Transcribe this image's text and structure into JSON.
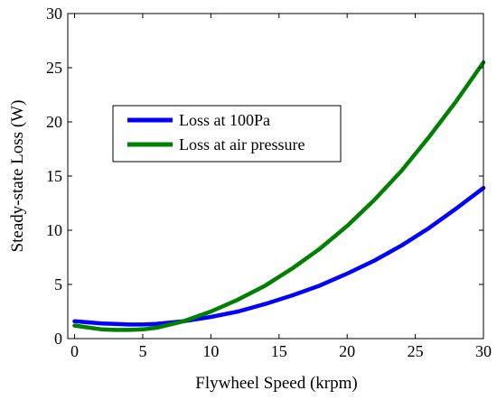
{
  "chart_data": {
    "type": "line",
    "title": "",
    "xlabel": "Flywheel Speed (krpm)",
    "ylabel": "Steady-state Loss (W)",
    "xlim": [
      -0.5,
      30
    ],
    "ylim": [
      0,
      30
    ],
    "xticks": [
      0,
      5,
      10,
      15,
      20,
      25,
      30
    ],
    "yticks": [
      0,
      5,
      10,
      15,
      20,
      25,
      30
    ],
    "grid": false,
    "legend_position": "upper-left",
    "series": [
      {
        "name": "Loss at 100Pa",
        "color": "#0000ff",
        "x": [
          0,
          2,
          4,
          5,
          6,
          8,
          10,
          12,
          14,
          16,
          18,
          20,
          22,
          24,
          26,
          28,
          30
        ],
        "y": [
          1.6,
          1.4,
          1.3,
          1.3,
          1.35,
          1.6,
          2.0,
          2.5,
          3.2,
          4.0,
          4.9,
          6.0,
          7.2,
          8.6,
          10.2,
          12.0,
          13.9
        ]
      },
      {
        "name": "Loss at air pressure",
        "color": "#008000",
        "x": [
          0,
          2,
          3,
          4,
          5,
          6,
          8,
          10,
          12,
          14,
          16,
          18,
          20,
          22,
          24,
          26,
          28,
          30
        ],
        "y": [
          1.2,
          0.85,
          0.8,
          0.8,
          0.85,
          1.0,
          1.6,
          2.5,
          3.6,
          4.9,
          6.5,
          8.3,
          10.4,
          12.8,
          15.5,
          18.6,
          21.9,
          25.5
        ]
      }
    ]
  }
}
